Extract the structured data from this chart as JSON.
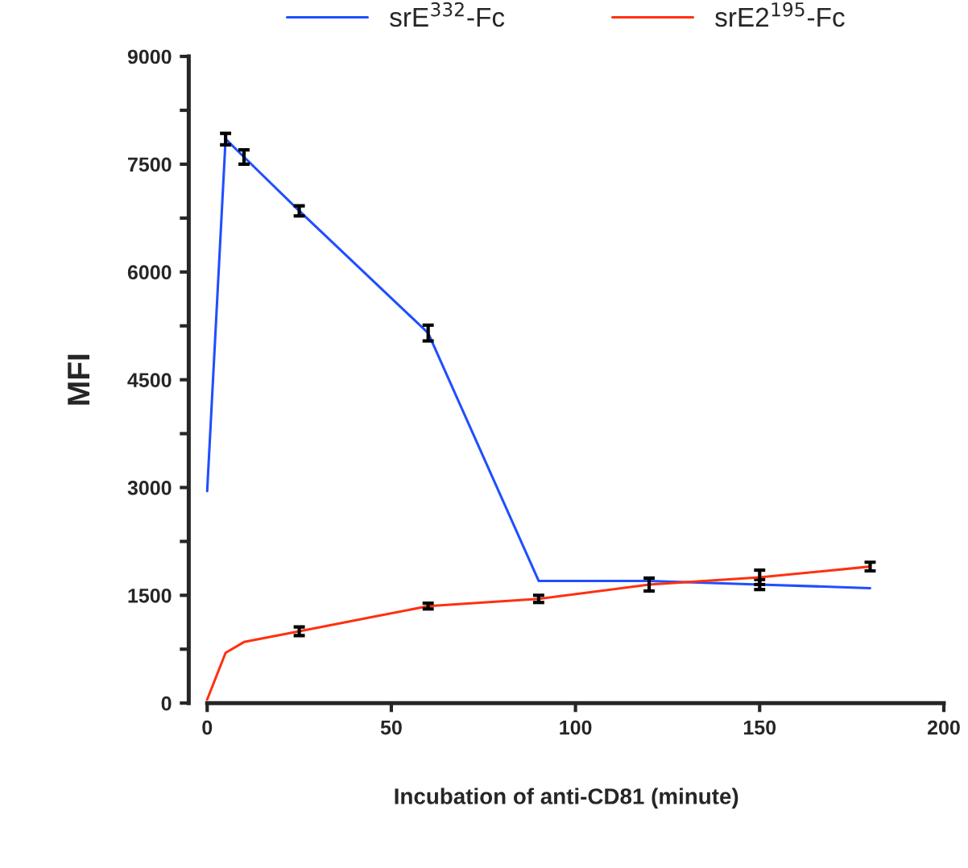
{
  "chart_data": {
    "type": "line",
    "xlabel": "Incubation of anti-CD81 (minute)",
    "ylabel": "MFI",
    "x": [
      0,
      5,
      10,
      25,
      60,
      90,
      120,
      150,
      180
    ],
    "series": [
      {
        "name": "srE$^{332}$-Fc",
        "color": "#1f4fff",
        "values": [
          2950,
          7850,
          7600,
          6850,
          5150,
          1700,
          1700,
          1650,
          1600
        ],
        "errors": [
          null,
          80,
          100,
          70,
          110,
          null,
          null,
          70,
          null
        ]
      },
      {
        "name": "srE2$^{195}$-Fc",
        "color": "#ff3010",
        "values": [
          50,
          700,
          850,
          1000,
          1350,
          1450,
          1650,
          1750,
          1900
        ],
        "errors": [
          null,
          null,
          null,
          60,
          40,
          50,
          90,
          100,
          60
        ]
      }
    ],
    "xlim": [
      -5,
      200
    ],
    "xticks": [
      0,
      50,
      100,
      150,
      200
    ],
    "ylim": [
      0,
      9000
    ],
    "yticks": [
      0,
      {
        "value": 750,
        "label": null
      },
      1500,
      {
        "value": 2250,
        "label": null
      },
      3000,
      {
        "value": 3750,
        "label": null
      },
      4500,
      {
        "value": 5250,
        "label": null
      },
      6000,
      {
        "value": 6750,
        "label": null
      },
      7500,
      {
        "value": 8250,
        "label": null
      },
      9000
    ],
    "grid": false,
    "legend": "top"
  }
}
